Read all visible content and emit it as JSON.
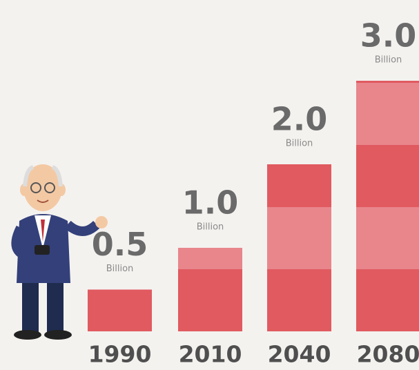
{
  "chart_data": {
    "type": "bar",
    "categories": [
      "1990",
      "2010",
      "2040",
      "2080"
    ],
    "values": [
      0.5,
      1.0,
      2.0,
      3.0
    ],
    "value_labels": [
      "0.5",
      "1.0",
      "2.0",
      "3.0"
    ],
    "unit": "Billion",
    "color": "#e05a60",
    "ylim": [
      0,
      3
    ]
  }
}
